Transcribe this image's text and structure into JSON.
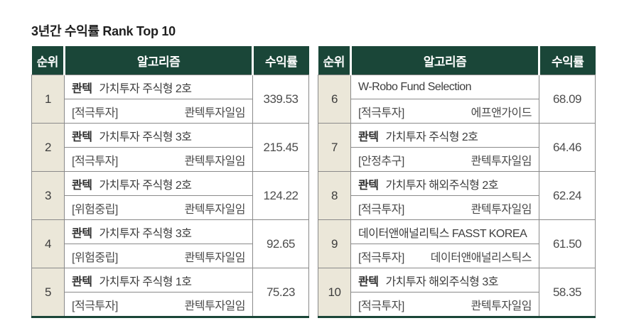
{
  "title": "3년간 수익률 Rank Top 10",
  "columns": {
    "rank": "순위",
    "algorithm": "알고리즘",
    "return": "수익률"
  },
  "colors": {
    "header_bg": "#1a4638",
    "header_text": "#ffffff",
    "rank_cell_bg": "#ebe7d9",
    "cell_border": "#8a8a8a",
    "bottom_border": "#1a4638"
  },
  "tables": [
    {
      "rows": [
        {
          "rank": "1",
          "brand": "콴텍",
          "name": "가치투자 주식형 2호",
          "category": "[적극투자]",
          "provider": "콴텍투자일임",
          "value": "339.53"
        },
        {
          "rank": "2",
          "brand": "콴텍",
          "name": "가치투자 주식형 3호",
          "category": "[적극투자]",
          "provider": "콴텍투자일임",
          "value": "215.45"
        },
        {
          "rank": "3",
          "brand": "콴텍",
          "name": "가치투자 주식형 2호",
          "category": "[위험중립]",
          "provider": "콴텍투자일임",
          "value": "124.22"
        },
        {
          "rank": "4",
          "brand": "콴텍",
          "name": "가치투자 주식형 3호",
          "category": "[위험중립]",
          "provider": "콴텍투자일임",
          "value": "92.65"
        },
        {
          "rank": "5",
          "brand": "콴텍",
          "name": "가치투자 주식형 1호",
          "category": "[적극투자]",
          "provider": "콴텍투자일임",
          "value": "75.23"
        }
      ]
    },
    {
      "rows": [
        {
          "rank": "6",
          "brand": "",
          "name": "W-Robo  Fund Selection",
          "category": "[적극투자]",
          "provider": "에프앤가이드",
          "value": "68.09"
        },
        {
          "rank": "7",
          "brand": "콴텍",
          "name": "가치투자 주식형 2호",
          "category": "[안정추구]",
          "provider": "콴텍투자일임",
          "value": "64.46"
        },
        {
          "rank": "8",
          "brand": "콴텍",
          "name": "가치투자 해외주식형 2호",
          "category": "[적극투자]",
          "provider": "콴텍투자일임",
          "value": "62.24"
        },
        {
          "rank": "9",
          "brand": "",
          "name": "데이터앤애널리틱스  FASST KOREA",
          "category": "[적극투자]",
          "provider": "데이터앤애널리스틱스",
          "value": "61.50"
        },
        {
          "rank": "10",
          "brand": "콴텍",
          "name": "가치투자 해외주식형 3호",
          "category": "[적극투자]",
          "provider": "콴텍투자일임",
          "value": "58.35"
        }
      ]
    }
  ]
}
